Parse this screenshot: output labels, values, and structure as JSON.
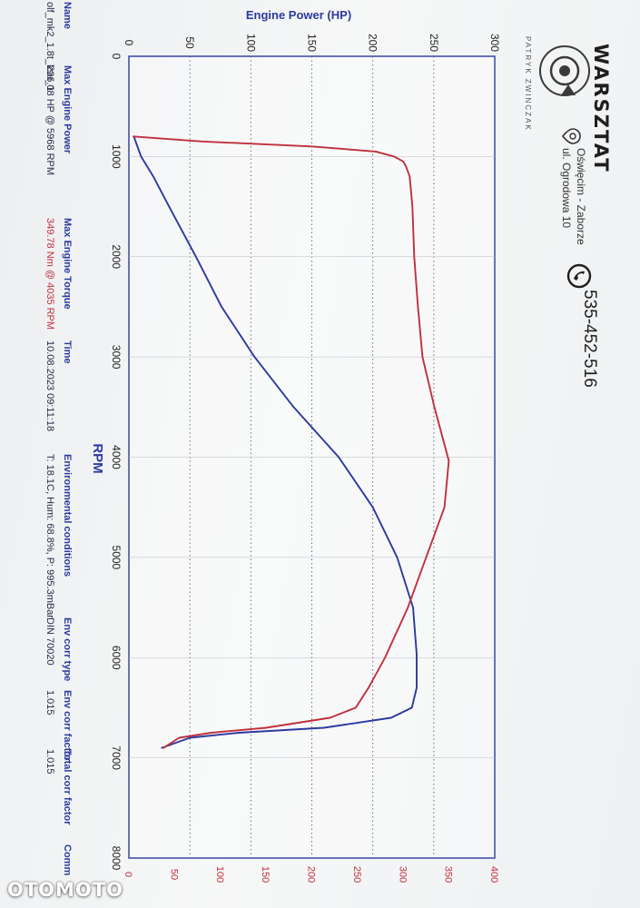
{
  "chart_data": {
    "type": "line",
    "title": "",
    "xlabel": "RPM",
    "ylabel": "Engine Power (HP)",
    "y2label": "",
    "xlim": [
      0,
      8000
    ],
    "ylim": [
      0,
      300
    ],
    "y2lim": [
      0,
      400
    ],
    "xticks": [
      "0",
      "1000",
      "2000",
      "3000",
      "4000",
      "5000",
      "6000",
      "7000",
      "8000"
    ],
    "yticks": [
      "0",
      "50",
      "100",
      "150",
      "200",
      "250",
      "300"
    ],
    "y2ticks": [
      "0",
      "50",
      "100",
      "150",
      "200",
      "250",
      "300",
      "350",
      "400"
    ],
    "grid": true,
    "series": [
      {
        "color": "#2b3a9e",
        "axis": "left",
        "x": [
          800,
          1000,
          1200,
          1500,
          2000,
          2500,
          3000,
          3500,
          4000,
          4500,
          5000,
          5500,
          5968,
          6300,
          6500,
          6600,
          6700,
          6750,
          6800,
          6900
        ],
        "y": [
          4,
          10,
          20,
          33,
          55,
          76,
          103,
          135,
          172,
          200,
          220,
          233,
          236,
          236,
          232,
          215,
          160,
          90,
          50,
          27
        ]
      },
      {
        "color": "#c0303c",
        "axis": "right",
        "x": [
          800,
          850,
          900,
          950,
          1000,
          1050,
          1100,
          1200,
          1500,
          2000,
          2500,
          3000,
          3500,
          4035,
          4500,
          5000,
          5500,
          6000,
          6300,
          6500,
          6600,
          6700,
          6750,
          6800,
          6900
        ],
        "y": [
          5,
          80,
          200,
          270,
          290,
          300,
          303,
          307,
          310,
          312,
          316,
          321,
          334,
          349.78,
          345,
          325,
          305,
          280,
          262,
          248,
          220,
          150,
          90,
          55,
          38
        ]
      }
    ]
  },
  "info": {
    "headers": [
      "Name",
      "Max Engine Power",
      "Max Engine Torque",
      "Time",
      "Environmental conditions",
      "Env corr type",
      "Env corr factor",
      "Total corr factor",
      "Comm"
    ],
    "values": [
      "olf_mk2_1.8t_ksu_1",
      "236.08 HP @ 5968 RPM",
      "349.78 Nm @ 4035 RPM",
      "10.08.2023 09:11:18",
      "T: 18.1C, Hum: 68.8%, P: 995.3mBar",
      "DIN 70020",
      "1.015",
      "1.015",
      ""
    ]
  },
  "branding": {
    "logo_text": "WARSZTAT",
    "logo_subtext": "PATRYK ZWINCZAK",
    "address_line1": "Oświęcim - Zaborze",
    "address_line2": "ul. Ogrodowa 10",
    "phone": "535-452-516"
  },
  "watermark": "OTOMOTO",
  "colors": {
    "power": "#2b3a9e",
    "torque": "#c0303c",
    "axis_text": "#2b3a9e"
  }
}
